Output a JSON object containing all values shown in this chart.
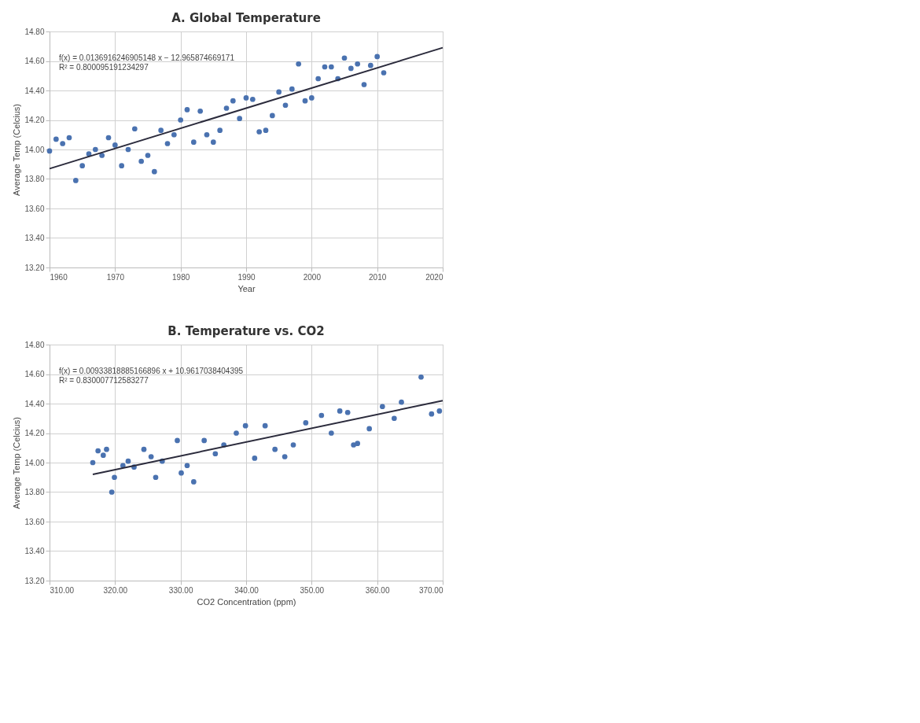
{
  "chart_data": [
    {
      "type": "scatter",
      "title": "A. Global Temperature",
      "xlabel": "Year",
      "ylabel": "Average Temp (Celcius)",
      "annotations": [
        "f(x) = 0.0136916246905148 x − 12.965874669171",
        "R² = 0.800095191234297"
      ],
      "xlim": [
        1960,
        2020
      ],
      "xticks": [
        1960,
        1970,
        1980,
        1990,
        2000,
        2010,
        2020
      ],
      "ylim": [
        13.2,
        14.8
      ],
      "yticks": [
        {
          "value": 13.2,
          "label": "13.20"
        },
        {
          "value": 13.4,
          "label": "13.40"
        },
        {
          "value": 13.6,
          "label": "13.60"
        },
        {
          "value": 13.8,
          "label": "13.80"
        },
        {
          "value": 14.0,
          "label": "14.00"
        },
        {
          "value": 14.2,
          "label": "14.20"
        },
        {
          "value": 14.4,
          "label": "14.40"
        },
        {
          "value": 14.6,
          "label": "14.60"
        },
        {
          "value": 14.8,
          "label": "14.80"
        }
      ],
      "grid": true,
      "series": [
        {
          "type": "scatter",
          "marker": "circle",
          "color": "#4a72b0",
          "x": [
            1960,
            1961,
            1962,
            1963,
            1964,
            1965,
            1966,
            1967,
            1968,
            1969,
            1970,
            1971,
            1972,
            1973,
            1974,
            1975,
            1976,
            1977,
            1978,
            1979,
            1980,
            1981,
            1982,
            1983,
            1984,
            1985,
            1986,
            1987,
            1988,
            1989,
            1990,
            1991,
            1992,
            1993,
            1994,
            1995,
            1996,
            1997,
            1998,
            1999,
            2000,
            2001,
            2002,
            2003,
            2004,
            2005,
            2006,
            2007,
            2008,
            2009,
            2010,
            2011
          ],
          "values": [
            13.99,
            14.07,
            14.04,
            14.08,
            13.79,
            13.89,
            13.97,
            14.0,
            13.96,
            14.08,
            14.03,
            13.89,
            14.0,
            14.14,
            13.92,
            13.96,
            13.85,
            14.13,
            14.04,
            14.1,
            14.2,
            14.27,
            14.05,
            14.26,
            14.1,
            14.05,
            14.13,
            14.28,
            14.33,
            14.21,
            14.35,
            14.34,
            14.12,
            14.13,
            14.23,
            14.39,
            14.3,
            14.41,
            14.58,
            14.33,
            14.35,
            14.48,
            14.56,
            14.56,
            14.48,
            14.62,
            14.55,
            14.58,
            14.44,
            14.57,
            14.63,
            14.52
          ]
        },
        {
          "type": "line",
          "color": "#2b2b3c",
          "x": [
            1960,
            2020
          ],
          "values": [
            13.87,
            14.69
          ]
        }
      ]
    },
    {
      "type": "scatter",
      "title": "B. Temperature vs. CO2",
      "xlabel": "CO2 Concentration (ppm)",
      "ylabel": "Average Temp (Celcius)",
      "annotations": [
        "f(x) = 0.00933818885166896 x + 10.9617038404395",
        "R² = 0.830007712583277"
      ],
      "xlim": [
        310,
        370
      ],
      "xticks": [
        {
          "value": 310,
          "label": "310.00"
        },
        {
          "value": 320,
          "label": "320.00"
        },
        {
          "value": 330,
          "label": "330.00"
        },
        {
          "value": 340,
          "label": "340.00"
        },
        {
          "value": 350,
          "label": "350.00"
        },
        {
          "value": 360,
          "label": "360.00"
        },
        {
          "value": 370,
          "label": "370.00"
        }
      ],
      "ylim": [
        13.2,
        14.8
      ],
      "yticks": [
        {
          "value": 13.2,
          "label": "13.20"
        },
        {
          "value": 13.4,
          "label": "13.40"
        },
        {
          "value": 13.6,
          "label": "13.60"
        },
        {
          "value": 13.8,
          "label": "13.80"
        },
        {
          "value": 14.0,
          "label": "14.00"
        },
        {
          "value": 14.2,
          "label": "14.20"
        },
        {
          "value": 14.4,
          "label": "14.40"
        },
        {
          "value": 14.6,
          "label": "14.60"
        },
        {
          "value": 14.8,
          "label": "14.80"
        }
      ],
      "grid": true,
      "series": [
        {
          "type": "scatter",
          "marker": "circle",
          "color": "#4a72b0",
          "x": [
            316.6,
            317.4,
            318.2,
            318.7,
            319.5,
            319.9,
            321.2,
            322.0,
            322.9,
            324.4,
            325.5,
            326.2,
            327.2,
            329.5,
            330.1,
            331.0,
            332.0,
            333.6,
            335.3,
            336.6,
            338.5,
            339.9,
            341.3,
            342.9,
            344.4,
            345.9,
            347.2,
            349.1,
            351.5,
            353.0,
            354.3,
            355.5,
            356.4,
            357.0,
            358.8,
            360.8,
            362.6,
            363.7,
            366.7,
            368.3,
            369.5
          ],
          "values": [
            14.0,
            14.08,
            14.05,
            14.09,
            13.8,
            13.9,
            13.98,
            14.01,
            13.97,
            14.09,
            14.04,
            13.9,
            14.01,
            14.15,
            13.93,
            13.98,
            13.87,
            14.15,
            14.06,
            14.12,
            14.2,
            14.25,
            14.03,
            14.25,
            14.09,
            14.04,
            14.12,
            14.27,
            14.32,
            14.2,
            14.35,
            14.34,
            14.12,
            14.13,
            14.23,
            14.38,
            14.3,
            14.41,
            14.58,
            14.33,
            14.35
          ]
        },
        {
          "type": "line",
          "color": "#2b2b3c",
          "x": [
            316.6,
            370
          ],
          "values": [
            13.92,
            14.42
          ]
        }
      ]
    }
  ]
}
